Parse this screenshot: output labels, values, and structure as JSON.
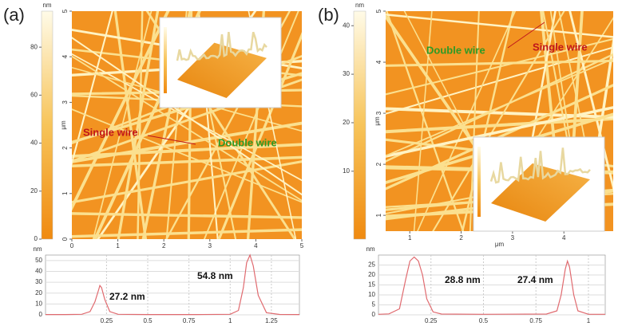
{
  "panels": [
    {
      "label": "(a)",
      "colorbar": {
        "unit": "nm",
        "lim": [
          0,
          95
        ],
        "ticks": [
          0,
          20,
          40,
          60,
          80
        ]
      },
      "image": {
        "y_label": "μm",
        "xlim": [
          0,
          5
        ],
        "ylim": [
          0,
          5
        ],
        "xticks": [
          0,
          1,
          2,
          3,
          4,
          5
        ],
        "yticks": [
          0,
          1,
          2,
          3,
          4,
          5
        ],
        "annotations": [
          "Single wire",
          "Double wire"
        ]
      }
    },
    {
      "label": "(b)",
      "colorbar": {
        "unit": "nm",
        "lim": [
          -4,
          43
        ],
        "ticks": [
          10,
          20,
          30,
          40
        ]
      },
      "image": {
        "x_label": "μm",
        "y_label": "μm",
        "xlim": [
          0.53,
          4.96
        ],
        "ylim": [
          0.69,
          5
        ],
        "xticks": [
          1,
          2,
          3,
          4
        ],
        "yticks": [
          1,
          2,
          3,
          4,
          5
        ],
        "annotations": [
          "Double wire",
          "Single wire"
        ]
      }
    }
  ],
  "chart_data": [
    {
      "type": "line",
      "y_label": "nm",
      "color": "#e06a6f",
      "x": [
        -0.12,
        0,
        0.1,
        0.15,
        0.18,
        0.2,
        0.21,
        0.22,
        0.24,
        0.27,
        0.32,
        0.5,
        0.8,
        1.0,
        1.05,
        1.08,
        1.1,
        1.12,
        1.14,
        1.17,
        1.22,
        1.3,
        1.42
      ],
      "values": [
        0.3,
        0.3,
        0.5,
        3,
        12,
        22,
        27,
        25,
        14,
        3,
        0.5,
        0.3,
        0.3,
        0.5,
        4,
        25,
        48,
        55,
        45,
        18,
        2,
        0.4,
        0.3
      ],
      "xlim": [
        -0.12,
        1.42
      ],
      "ylim": [
        0,
        55
      ],
      "xticks": [
        0.25,
        0.5,
        0.75,
        1,
        1.25
      ],
      "yticks": [
        0,
        10,
        20,
        30,
        40,
        50
      ],
      "annotations": [
        "27.2 nm",
        "54.8 nm"
      ]
    },
    {
      "type": "line",
      "y_label": "nm",
      "color": "#e06a6f",
      "x": [
        0,
        0.05,
        0.1,
        0.13,
        0.15,
        0.17,
        0.19,
        0.21,
        0.23,
        0.26,
        0.3,
        0.5,
        0.8,
        0.85,
        0.87,
        0.89,
        0.9,
        0.91,
        0.93,
        0.95,
        1.0,
        1.08
      ],
      "values": [
        0.3,
        0.5,
        3,
        18,
        27,
        29,
        27,
        20,
        8,
        1.5,
        0.4,
        0.3,
        0.4,
        2,
        10,
        23,
        27,
        24,
        10,
        2,
        0.3,
        0.3
      ],
      "xlim": [
        0,
        1.08
      ],
      "ylim": [
        0,
        30
      ],
      "xticks": [
        0.25,
        0.5,
        0.75,
        1
      ],
      "yticks": [
        0,
        5,
        10,
        15,
        20,
        25
      ],
      "annotations": [
        "28.8 nm",
        "27.4 nm"
      ]
    }
  ]
}
